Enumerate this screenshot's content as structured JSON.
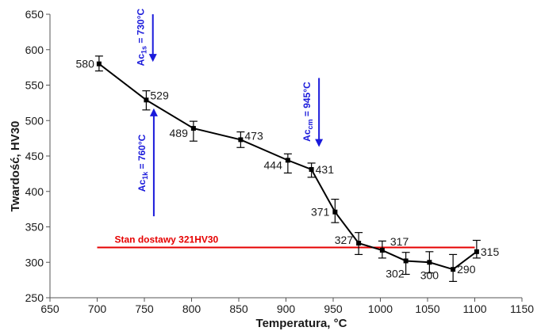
{
  "chart_data": {
    "type": "line",
    "xlabel": "Temperatura, °C",
    "ylabel": "Twardość, HV30",
    "xlim": [
      650,
      1150
    ],
    "ylim": [
      250,
      650
    ],
    "xticks": [
      650,
      700,
      750,
      800,
      850,
      900,
      950,
      1000,
      1050,
      1100,
      1150
    ],
    "yticks": [
      250,
      300,
      350,
      400,
      450,
      500,
      550,
      600,
      650
    ],
    "grid": false,
    "series": [
      {
        "color": "#000000",
        "points": [
          {
            "x": 702,
            "y": 580,
            "label": "580",
            "err_low": 570,
            "err_high": 591
          },
          {
            "x": 752,
            "y": 529,
            "label": "529",
            "err_low": 515,
            "err_high": 542
          },
          {
            "x": 802,
            "y": 489,
            "label": "489",
            "err_low": 471,
            "err_high": 499
          },
          {
            "x": 852,
            "y": 473,
            "label": "473",
            "err_low": 462,
            "err_high": 484
          },
          {
            "x": 902,
            "y": 444,
            "label": "444",
            "err_low": 426,
            "err_high": 453
          },
          {
            "x": 927,
            "y": 431,
            "label": "431",
            "err_low": 420,
            "err_high": 440
          },
          {
            "x": 952,
            "y": 371,
            "label": "371",
            "err_low": 356,
            "err_high": 389
          },
          {
            "x": 977,
            "y": 327,
            "label": "327",
            "err_low": 311,
            "err_high": 342
          },
          {
            "x": 1002,
            "y": 317,
            "label": "317",
            "err_low": 306,
            "err_high": 330
          },
          {
            "x": 1027,
            "y": 302,
            "label": "302",
            "err_low": 283,
            "err_high": 314
          },
          {
            "x": 1052,
            "y": 300,
            "label": "300",
            "err_low": 285,
            "err_high": 315
          },
          {
            "x": 1077,
            "y": 290,
            "label": "290",
            "err_low": 273,
            "err_high": 311
          },
          {
            "x": 1102,
            "y": 315,
            "label": "315",
            "err_low": 306,
            "err_high": 331
          }
        ]
      }
    ],
    "reference_line": {
      "y": 321,
      "x_start": 700,
      "x_end": 1100,
      "color": "#e60000",
      "label": "Stan dostawy  321HV30"
    },
    "annotations": [
      {
        "id": "ac1s",
        "main": "Ac",
        "sub": "1s",
        "rest": " = 730°C",
        "x": 759,
        "y_start": 650,
        "y_end": 585,
        "direction": "down",
        "color": "#1a1adb"
      },
      {
        "id": "ac1k",
        "main": "Ac",
        "sub": "1k",
        "rest": " = 760°C",
        "x": 760,
        "y_start": 365,
        "y_end": 515,
        "direction": "up",
        "color": "#1a1adb"
      },
      {
        "id": "accm",
        "main": "Ac",
        "sub": "cm",
        "rest": " = 945°C",
        "x": 935,
        "y_start": 560,
        "y_end": 465,
        "direction": "down",
        "color": "#1a1adb"
      }
    ]
  }
}
